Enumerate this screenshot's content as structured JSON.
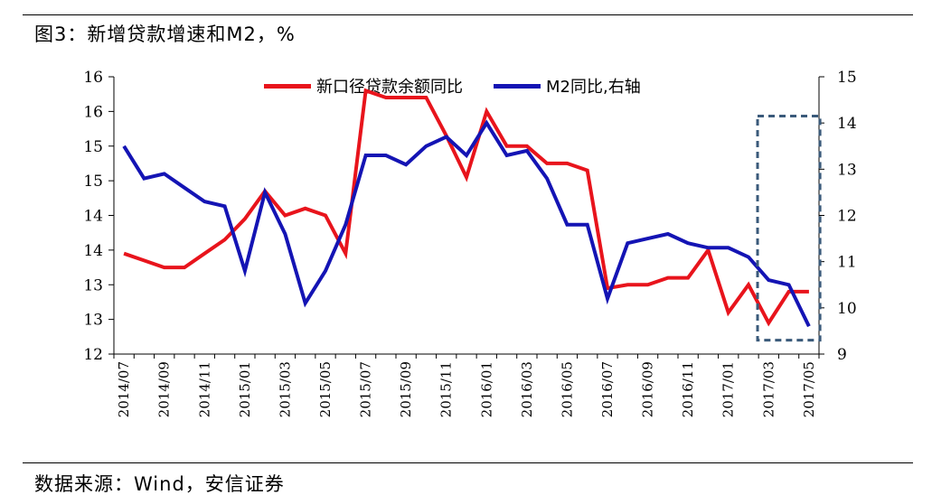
{
  "title": "图3：新增贷款增速和M2，%",
  "source": "数据来源：Wind，安信证券",
  "colors": {
    "loan": "#e8141c",
    "m2": "#1414b4",
    "box": "#3a5a7a"
  },
  "chart_data": {
    "type": "line",
    "x": [
      "2014/07",
      "2014/08",
      "2014/09",
      "2014/10",
      "2014/11",
      "2014/12",
      "2015/01",
      "2015/02",
      "2015/03",
      "2015/04",
      "2015/05",
      "2015/06",
      "2015/07",
      "2015/08",
      "2015/09",
      "2015/10",
      "2015/11",
      "2015/12",
      "2016/01",
      "2016/02",
      "2016/03",
      "2016/04",
      "2016/05",
      "2016/06",
      "2016/07",
      "2016/08",
      "2016/09",
      "2016/10",
      "2016/11",
      "2016/12",
      "2017/01",
      "2017/02",
      "2017/03",
      "2017/04",
      "2017/05"
    ],
    "x_tick_labels": [
      "2014/07",
      "2014/09",
      "2014/11",
      "2015/01",
      "2015/03",
      "2015/05",
      "2015/07",
      "2015/09",
      "2015/11",
      "2016/01",
      "2016/03",
      "2016/05",
      "2016/07",
      "2016/09",
      "2016/11",
      "2017/01",
      "2017/03",
      "2017/05"
    ],
    "left_axis": {
      "range": [
        12,
        16
      ],
      "tick_labels": [
        "12",
        "13",
        "13",
        "14",
        "14",
        "15",
        "15",
        "16",
        "16"
      ]
    },
    "right_axis": {
      "range": [
        9,
        15
      ],
      "tick_labels": [
        "9",
        "10",
        "11",
        "12",
        "13",
        "14",
        "15"
      ]
    },
    "series": [
      {
        "name": "新口径贷款余额同比",
        "axis": "left",
        "values": [
          13.45,
          13.35,
          13.25,
          13.25,
          13.45,
          13.65,
          13.95,
          14.35,
          14.0,
          14.1,
          14.0,
          13.45,
          15.8,
          15.7,
          15.7,
          15.7,
          15.15,
          14.55,
          15.5,
          15.0,
          15.0,
          14.75,
          14.75,
          14.65,
          12.95,
          13.0,
          13.0,
          13.1,
          13.1,
          13.5,
          12.6,
          13.0,
          12.45,
          12.9,
          12.9
        ]
      },
      {
        "name": "M2同比,右轴",
        "axis": "right",
        "values": [
          13.5,
          12.8,
          12.9,
          12.6,
          12.3,
          12.2,
          10.8,
          12.5,
          11.6,
          10.1,
          10.8,
          11.8,
          13.3,
          13.3,
          13.1,
          13.5,
          13.7,
          13.3,
          14.0,
          13.3,
          13.4,
          12.8,
          11.8,
          11.8,
          10.2,
          11.4,
          11.5,
          11.6,
          11.4,
          11.3,
          11.3,
          11.1,
          10.6,
          10.5,
          9.6
        ]
      }
    ],
    "annotation": "dashed highlight box over 2017/03–2017/05"
  }
}
